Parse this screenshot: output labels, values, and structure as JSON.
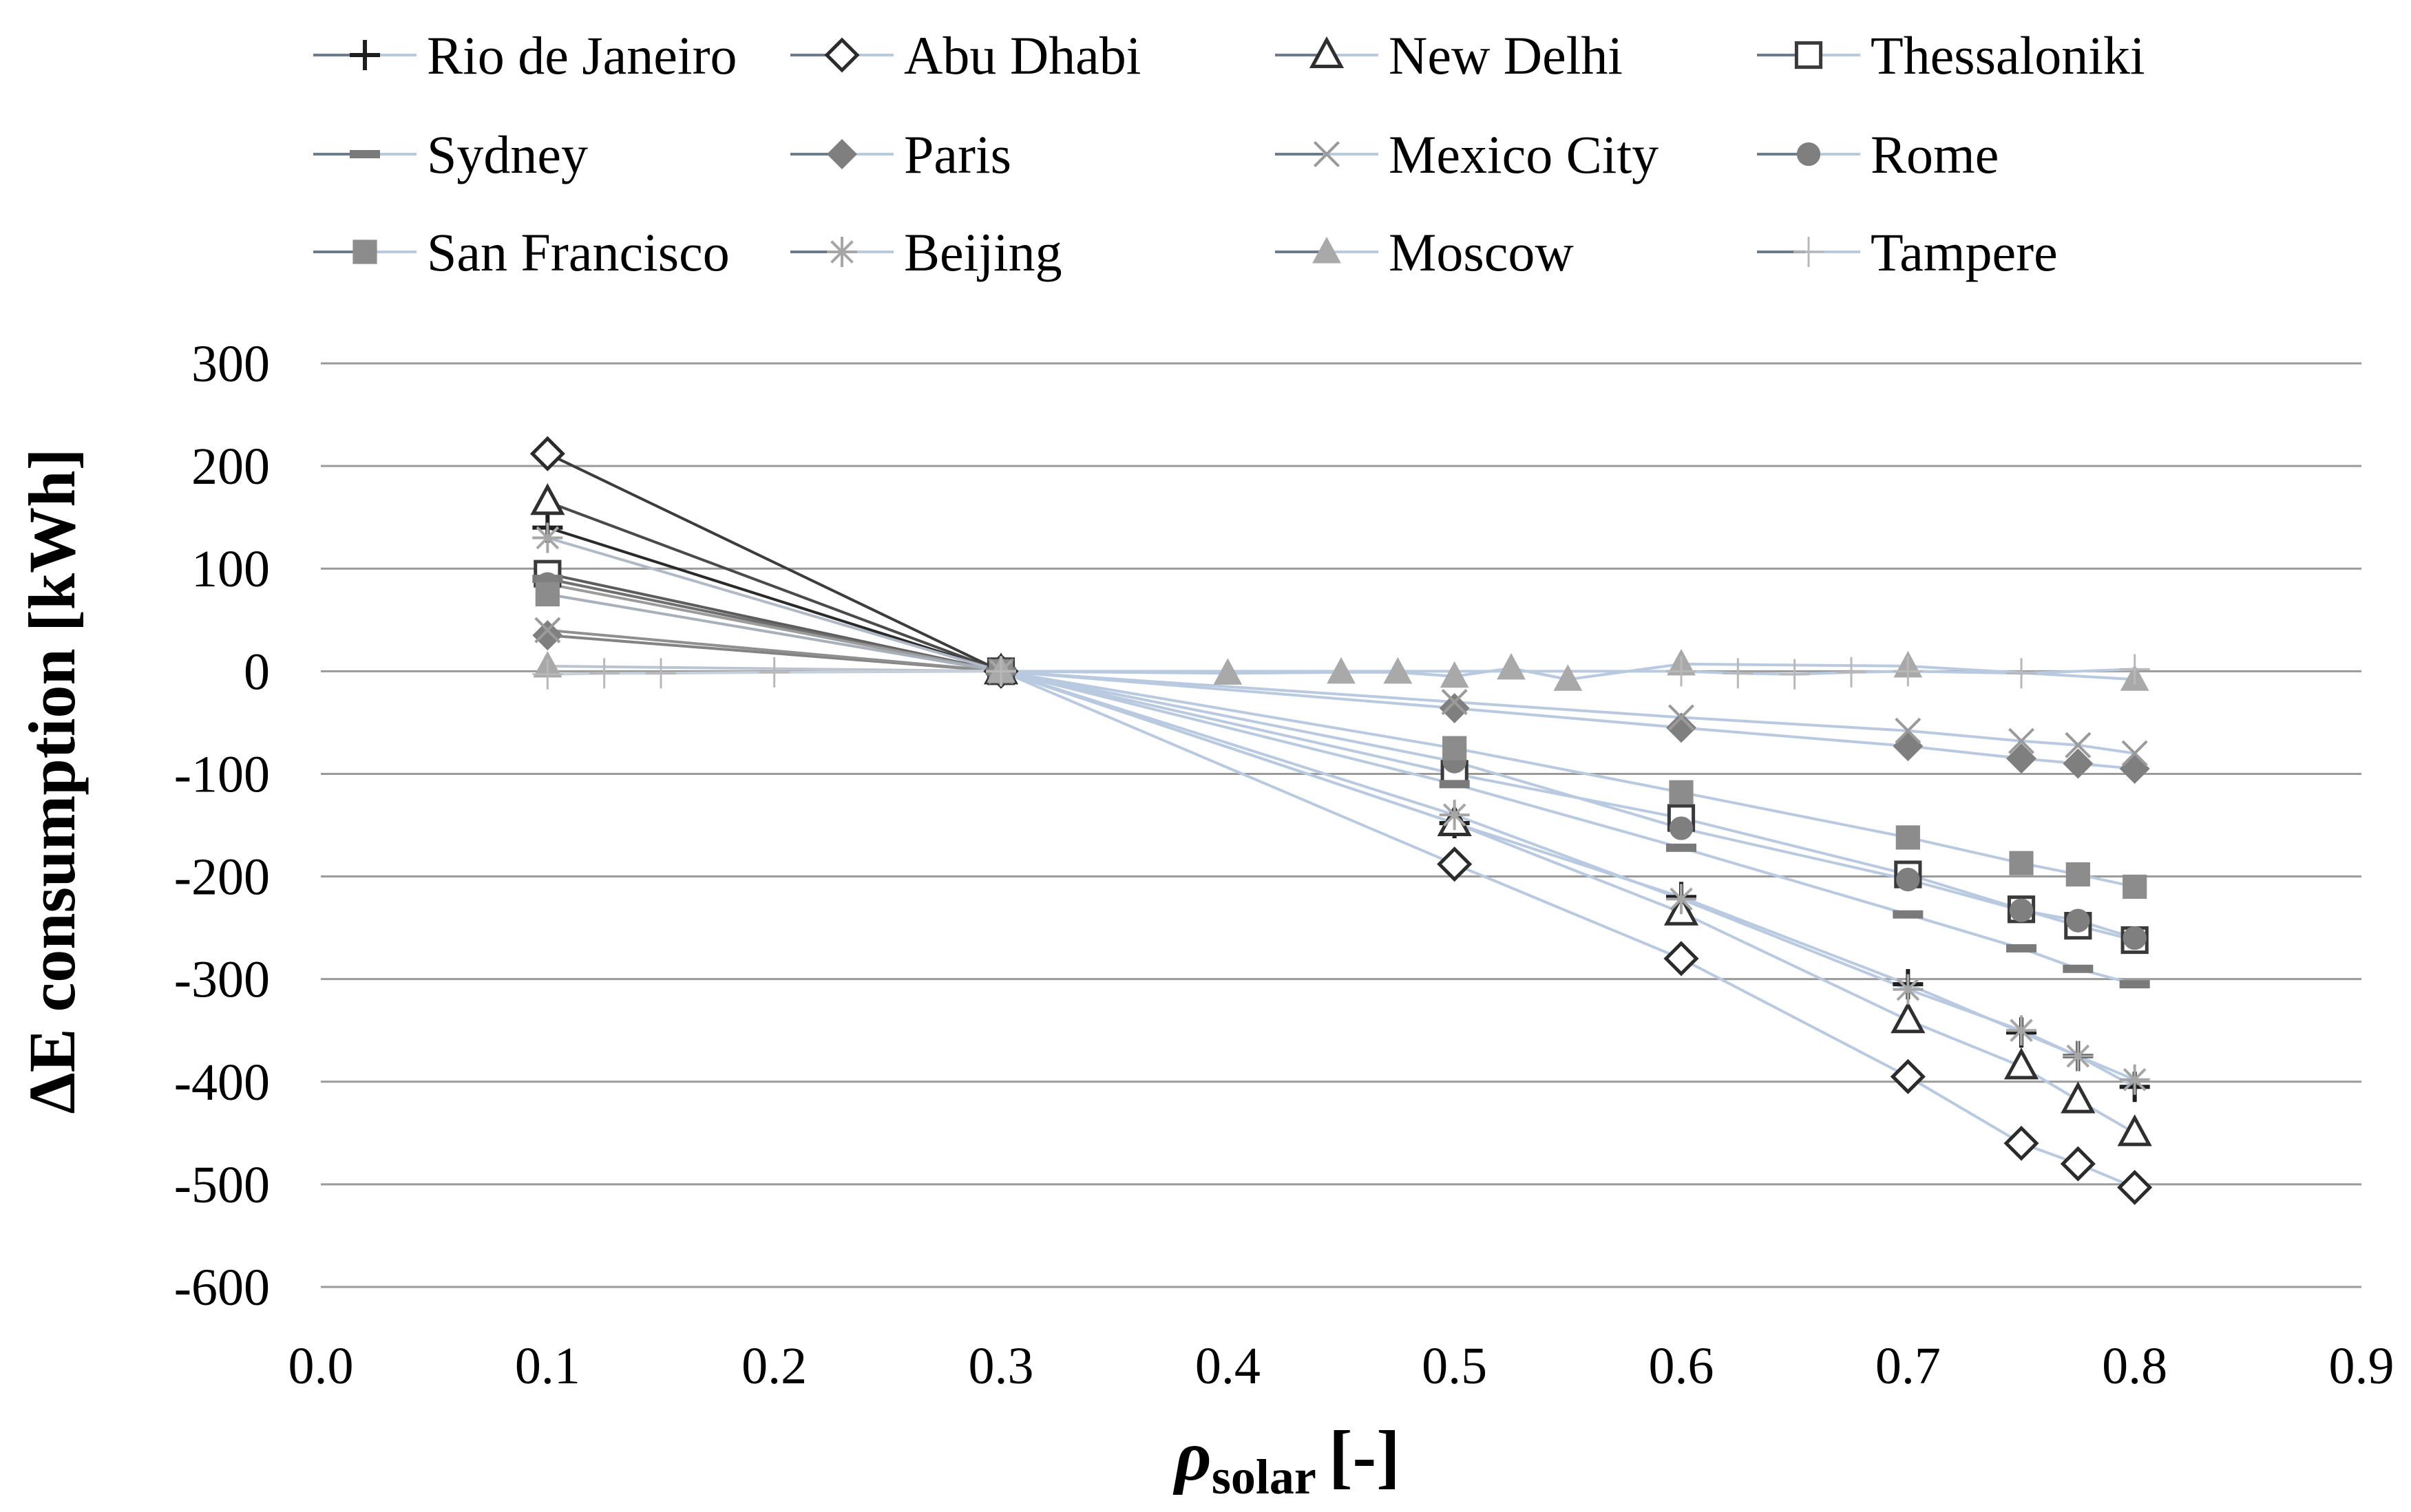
{
  "chart_data": {
    "type": "line",
    "title": "",
    "xlabel": "ρsolar [-]",
    "xlabel_parts": {
      "symbol": "ρ",
      "subscript": "solar",
      "unit": "[-]"
    },
    "ylabel": "ΔE consumption [kWh]",
    "xlim": [
      0.0,
      0.9
    ],
    "ylim": [
      -600,
      300
    ],
    "x_ticks": [
      "0.0",
      "0.1",
      "0.2",
      "0.3",
      "0.4",
      "0.5",
      "0.6",
      "0.7",
      "0.8",
      "0.9"
    ],
    "y_ticks": [
      "300",
      "200",
      "100",
      "0",
      "-100",
      "-200",
      "-300",
      "-400",
      "-500",
      "-600"
    ],
    "grid": true,
    "legend_position": "top",
    "series": [
      {
        "name": "Rio de Janeiro",
        "marker": "plus",
        "color": "#1f1f1f",
        "x": [
          0.1,
          0.3,
          0.5,
          0.6,
          0.7,
          0.75,
          0.775,
          0.8
        ],
        "y": [
          140,
          0,
          -148,
          -220,
          -305,
          -352,
          -375,
          -405
        ]
      },
      {
        "name": "Abu Dhabi",
        "marker": "diamond-open",
        "color": "#2b2b2b",
        "x": [
          0.1,
          0.3,
          0.5,
          0.6,
          0.7,
          0.75,
          0.775,
          0.8
        ],
        "y": [
          212,
          0,
          -188,
          -280,
          -395,
          -460,
          -480,
          -503
        ]
      },
      {
        "name": "New Delhi",
        "marker": "triangle-open",
        "color": "#2f2f2f",
        "x": [
          0.1,
          0.3,
          0.5,
          0.6,
          0.7,
          0.75,
          0.775,
          0.8
        ],
        "y": [
          165,
          0,
          -148,
          -235,
          -340,
          -385,
          -418,
          -450
        ]
      },
      {
        "name": "Thessaloniki",
        "marker": "square-open",
        "color": "#3a3a3a",
        "x": [
          0.1,
          0.3,
          0.5,
          0.6,
          0.7,
          0.75,
          0.775,
          0.8
        ],
        "y": [
          95,
          0,
          -100,
          -143,
          -198,
          -232,
          -248,
          -262
        ]
      },
      {
        "name": "Sydney",
        "marker": "dash",
        "color": "#7a7a7a",
        "x": [
          0.1,
          0.3,
          0.5,
          0.6,
          0.7,
          0.75,
          0.775,
          0.8
        ],
        "y": [
          90,
          0,
          -110,
          -172,
          -237,
          -270,
          -290,
          -305
        ]
      },
      {
        "name": "Paris",
        "marker": "diamond-filled",
        "color": "#7f7f7f",
        "x": [
          0.1,
          0.3,
          0.5,
          0.6,
          0.7,
          0.75,
          0.775,
          0.8
        ],
        "y": [
          35,
          0,
          -36,
          -55,
          -73,
          -85,
          -90,
          -95
        ]
      },
      {
        "name": "Mexico City",
        "marker": "x",
        "color": "#9a9a9a",
        "x": [
          0.1,
          0.3,
          0.5,
          0.6,
          0.7,
          0.75,
          0.775,
          0.8
        ],
        "y": [
          40,
          0,
          -30,
          -45,
          -58,
          -68,
          -72,
          -80
        ]
      },
      {
        "name": "Rome",
        "marker": "circle-filled",
        "color": "#7f7f7f",
        "x": [
          0.1,
          0.3,
          0.5,
          0.6,
          0.7,
          0.75,
          0.775,
          0.8
        ],
        "y": [
          85,
          0,
          -88,
          -153,
          -203,
          -233,
          -243,
          -260
        ]
      },
      {
        "name": "San Francisco",
        "marker": "square-filled",
        "color": "#8c8c8c",
        "x": [
          0.1,
          0.3,
          0.5,
          0.6,
          0.7,
          0.75,
          0.775,
          0.8
        ],
        "y": [
          75,
          0,
          -75,
          -118,
          -162,
          -187,
          -198,
          -210
        ]
      },
      {
        "name": "Beijing",
        "marker": "asterisk",
        "color": "#a6a6a6",
        "x": [
          0.1,
          0.3,
          0.5,
          0.6,
          0.7,
          0.75,
          0.775,
          0.8
        ],
        "y": [
          130,
          0,
          -140,
          -222,
          -310,
          -350,
          -375,
          -398
        ]
      },
      {
        "name": "Moscow",
        "marker": "triangle-filled",
        "color": "#a9a9a9",
        "x": [
          0.1,
          0.3,
          0.4,
          0.45,
          0.475,
          0.5,
          0.525,
          0.55,
          0.6,
          0.7,
          0.8
        ],
        "y": [
          5,
          0,
          -2,
          -1,
          -1,
          -5,
          3,
          -8,
          7,
          5,
          -8
        ]
      },
      {
        "name": "Tampere",
        "marker": "thin-plus",
        "color": "#b8b8b8",
        "x": [
          0.1,
          0.125,
          0.15,
          0.2,
          0.3,
          0.6,
          0.625,
          0.65,
          0.675,
          0.7,
          0.75,
          0.8
        ],
        "y": [
          -3,
          -2,
          -2,
          -1,
          0,
          0,
          -2,
          -3,
          -1,
          0,
          -2,
          2
        ]
      }
    ]
  }
}
